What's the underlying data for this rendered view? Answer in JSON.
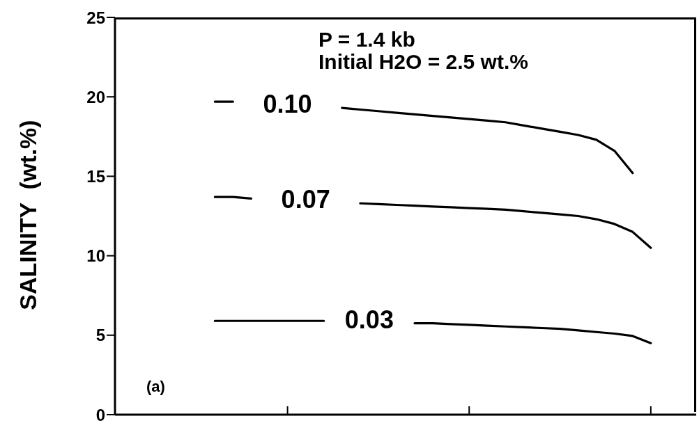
{
  "chart_data": {
    "type": "line",
    "ylabel": "SALINITY  (wt.%)",
    "ylim": [
      0,
      25
    ],
    "yticks": [
      0,
      5,
      10,
      15,
      20,
      25
    ],
    "categories": [
      null,
      null,
      null,
      null,
      null,
      null,
      null,
      null,
      null,
      null,
      null,
      null,
      null,
      null,
      null,
      null,
      null,
      null,
      null,
      null,
      null,
      null,
      null,
      null,
      null,
      null,
      null,
      null,
      null,
      null,
      null,
      null
    ],
    "series": [
      {
        "name": "0.10",
        "color": "#000000",
        "values": [
          null,
          null,
          null,
          null,
          null,
          19.7,
          19.7,
          null,
          null,
          null,
          null,
          null,
          19.3,
          19.2,
          19.1,
          19.0,
          18.9,
          18.8,
          18.7,
          18.6,
          18.5,
          18.4,
          18.2,
          18.0,
          17.8,
          17.6,
          17.3,
          16.6,
          15.2,
          null,
          null,
          null
        ]
      },
      {
        "name": "0.07",
        "color": "#000000",
        "values": [
          null,
          null,
          null,
          null,
          null,
          13.7,
          13.7,
          13.6,
          null,
          null,
          null,
          null,
          null,
          13.3,
          13.25,
          13.2,
          13.15,
          13.1,
          13.05,
          13.0,
          12.95,
          12.9,
          12.8,
          12.7,
          12.6,
          12.5,
          12.3,
          12.0,
          11.5,
          10.5,
          null,
          null
        ]
      },
      {
        "name": "0.03",
        "color": "#000000",
        "values": [
          null,
          null,
          null,
          null,
          null,
          5.9,
          5.9,
          5.9,
          5.9,
          5.9,
          5.9,
          5.9,
          null,
          null,
          null,
          null,
          5.75,
          5.75,
          5.7,
          5.65,
          5.6,
          5.55,
          5.5,
          5.45,
          5.4,
          5.3,
          5.2,
          5.1,
          4.95,
          4.5,
          null,
          null
        ]
      }
    ],
    "annotations": [
      "P = 1.4 kb",
      "Initial H2O = 2.5 wt.%",
      "(a)"
    ],
    "marker": "none",
    "line_style": "solid"
  }
}
